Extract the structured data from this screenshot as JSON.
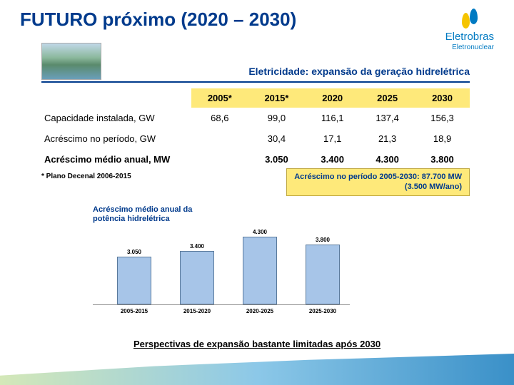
{
  "title": "FUTURO próximo (2020 – 2030)",
  "logo": {
    "brand": "Eletrobras",
    "sub": "Eletronuclear"
  },
  "subtitle": "Eletricidade: expansão da geração hidrelétrica",
  "table": {
    "headers": [
      "",
      "2005*",
      "2015*",
      "2020",
      "2025",
      "2030"
    ],
    "rows": [
      {
        "label": "Capacidade instalada, GW",
        "values": [
          "68,6",
          "99,0",
          "116,1",
          "137,4",
          "156,3"
        ],
        "bold": false
      },
      {
        "label": "Acréscimo no período, GW",
        "values": [
          "",
          "30,4",
          "17,1",
          "21,3",
          "18,9"
        ],
        "bold": false
      },
      {
        "label": "Acréscimo médio anual, MW",
        "values": [
          "",
          "3.050",
          "3.400",
          "4.300",
          "3.800"
        ],
        "bold": true
      }
    ],
    "header_bg": "#fee97a"
  },
  "footnote": "*  Plano Decenal 2006-2015",
  "callout": {
    "line1": "Acréscimo no período 2005-2030: 87.700 MW",
    "line2": "(3.500 MW/ano)"
  },
  "chart": {
    "type": "bar",
    "title_line1": "Acréscimo médio anual da",
    "title_line2": "potência hidrelétrica",
    "categories": [
      "2005-2015",
      "2015-2020",
      "2020-2025",
      "2025-2030"
    ],
    "values": [
      3050,
      3400,
      4300,
      3800
    ],
    "labels": [
      "3.050",
      "3.400",
      "4.300",
      "3.800"
    ],
    "ylim": [
      0,
      4500
    ],
    "bar_color": "#a7c5e8",
    "bar_border": "#5a7a9c"
  },
  "bottom_text": "Perspectivas de expansão bastante limitadas após 2030",
  "colors": {
    "title_color": "#003a8c",
    "accent_yellow": "#fee97a"
  }
}
